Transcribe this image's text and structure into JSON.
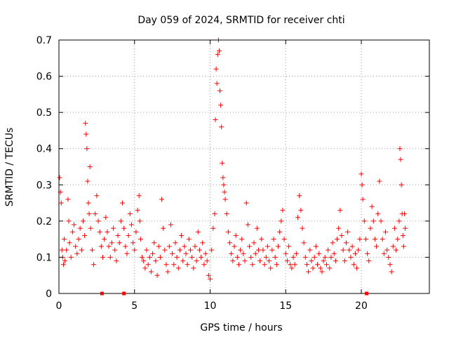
{
  "chart_data": {
    "type": "scatter",
    "title": "Day 059 of 2024, SRMTID for receiver chti",
    "xlabel": "GPS time / hours",
    "ylabel": "SRMTID / TECUs",
    "xlim": [
      0,
      24.5
    ],
    "ylim": [
      0,
      0.7
    ],
    "x_ticks": [
      0,
      5,
      10,
      15,
      20
    ],
    "x_tick_labels": [
      "0",
      "5",
      "10",
      "15",
      "20"
    ],
    "y_ticks": [
      0,
      0.1,
      0.2,
      0.3,
      0.4,
      0.5,
      0.6,
      0.7
    ],
    "y_tick_labels": [
      "0",
      "0.1",
      "0.2",
      "0.3",
      "0.4",
      "0.5",
      "0.6",
      "0.7"
    ],
    "grid": true,
    "marker": "+",
    "color": "#ff0000",
    "series": [
      {
        "name": "SRMTID",
        "points": [
          [
            0.05,
            0.32
          ],
          [
            0.1,
            0.28
          ],
          [
            0.15,
            0.25
          ],
          [
            0.2,
            0.12
          ],
          [
            0.25,
            0.1
          ],
          [
            0.3,
            0.08
          ],
          [
            0.35,
            0.15
          ],
          [
            0.4,
            0.09
          ],
          [
            0.5,
            0.12
          ],
          [
            0.6,
            0.26
          ],
          [
            0.65,
            0.2
          ],
          [
            0.7,
            0.14
          ],
          [
            0.8,
            0.1
          ],
          [
            0.9,
            0.17
          ],
          [
            1.0,
            0.19
          ],
          [
            1.1,
            0.13
          ],
          [
            1.2,
            0.11
          ],
          [
            1.3,
            0.15
          ],
          [
            1.4,
            0.18
          ],
          [
            1.5,
            0.12
          ],
          [
            1.6,
            0.2
          ],
          [
            1.7,
            0.16
          ],
          [
            1.75,
            0.47
          ],
          [
            1.8,
            0.44
          ],
          [
            1.85,
            0.4
          ],
          [
            1.9,
            0.31
          ],
          [
            1.95,
            0.25
          ],
          [
            2.0,
            0.22
          ],
          [
            2.05,
            0.35
          ],
          [
            2.1,
            0.18
          ],
          [
            2.2,
            0.12
          ],
          [
            2.3,
            0.08
          ],
          [
            2.4,
            0.22
          ],
          [
            2.5,
            0.27
          ],
          [
            2.6,
            0.2
          ],
          [
            2.7,
            0.17
          ],
          [
            2.8,
            0.13
          ],
          [
            2.9,
            0.1
          ],
          [
            3.0,
            0.15
          ],
          [
            3.1,
            0.21
          ],
          [
            3.2,
            0.17
          ],
          [
            3.3,
            0.13
          ],
          [
            3.4,
            0.1
          ],
          [
            3.5,
            0.14
          ],
          [
            3.6,
            0.18
          ],
          [
            3.7,
            0.12
          ],
          [
            3.8,
            0.09
          ],
          [
            3.9,
            0.16
          ],
          [
            4.0,
            0.14
          ],
          [
            4.1,
            0.2
          ],
          [
            4.2,
            0.25
          ],
          [
            4.3,
            0.18
          ],
          [
            4.4,
            0.13
          ],
          [
            4.5,
            0.11
          ],
          [
            4.6,
            0.16
          ],
          [
            4.7,
            0.22
          ],
          [
            4.8,
            0.19
          ],
          [
            4.9,
            0.14
          ],
          [
            5.0,
            0.12
          ],
          [
            5.1,
            0.17
          ],
          [
            5.2,
            0.23
          ],
          [
            5.3,
            0.27
          ],
          [
            5.35,
            0.2
          ],
          [
            5.4,
            0.15
          ],
          [
            5.5,
            0.1
          ],
          [
            5.6,
            0.09
          ],
          [
            5.7,
            0.07
          ],
          [
            5.8,
            0.12
          ],
          [
            5.9,
            0.08
          ],
          [
            6.0,
            0.1
          ],
          [
            6.1,
            0.06
          ],
          [
            6.2,
            0.11
          ],
          [
            6.3,
            0.14
          ],
          [
            6.4,
            0.09
          ],
          [
            6.5,
            0.05
          ],
          [
            6.6,
            0.13
          ],
          [
            6.7,
            0.1
          ],
          [
            6.8,
            0.26
          ],
          [
            6.9,
            0.18
          ],
          [
            7.0,
            0.12
          ],
          [
            7.1,
            0.08
          ],
          [
            7.2,
            0.06
          ],
          [
            7.3,
            0.13
          ],
          [
            7.4,
            0.19
          ],
          [
            7.5,
            0.11
          ],
          [
            7.6,
            0.08
          ],
          [
            7.7,
            0.14
          ],
          [
            7.8,
            0.1
          ],
          [
            7.9,
            0.07
          ],
          [
            8.0,
            0.12
          ],
          [
            8.1,
            0.16
          ],
          [
            8.2,
            0.09
          ],
          [
            8.3,
            0.13
          ],
          [
            8.4,
            0.11
          ],
          [
            8.5,
            0.08
          ],
          [
            8.6,
            0.15
          ],
          [
            8.7,
            0.12
          ],
          [
            8.8,
            0.1
          ],
          [
            8.9,
            0.07
          ],
          [
            9.0,
            0.13
          ],
          [
            9.1,
            0.09
          ],
          [
            9.2,
            0.17
          ],
          [
            9.3,
            0.12
          ],
          [
            9.4,
            0.1
          ],
          [
            9.5,
            0.14
          ],
          [
            9.6,
            0.08
          ],
          [
            9.7,
            0.11
          ],
          [
            9.8,
            0.09
          ],
          [
            9.9,
            0.05
          ],
          [
            10.0,
            0.04
          ],
          [
            10.1,
            0.12
          ],
          [
            10.2,
            0.18
          ],
          [
            10.3,
            0.22
          ],
          [
            10.35,
            0.48
          ],
          [
            10.4,
            0.62
          ],
          [
            10.45,
            0.58
          ],
          [
            10.5,
            0.66
          ],
          [
            10.55,
            0.7
          ],
          [
            10.6,
            0.67
          ],
          [
            10.65,
            0.56
          ],
          [
            10.7,
            0.52
          ],
          [
            10.75,
            0.46
          ],
          [
            10.8,
            0.36
          ],
          [
            10.85,
            0.32
          ],
          [
            10.9,
            0.3
          ],
          [
            10.95,
            0.28
          ],
          [
            11.0,
            0.26
          ],
          [
            11.1,
            0.22
          ],
          [
            11.2,
            0.17
          ],
          [
            11.3,
            0.14
          ],
          [
            11.4,
            0.11
          ],
          [
            11.5,
            0.09
          ],
          [
            11.6,
            0.13
          ],
          [
            11.7,
            0.16
          ],
          [
            11.8,
            0.1
          ],
          [
            11.9,
            0.08
          ],
          [
            12.0,
            0.12
          ],
          [
            12.1,
            0.15
          ],
          [
            12.2,
            0.11
          ],
          [
            12.3,
            0.09
          ],
          [
            12.4,
            0.25
          ],
          [
            12.5,
            0.19
          ],
          [
            12.6,
            0.13
          ],
          [
            12.7,
            0.1
          ],
          [
            12.8,
            0.08
          ],
          [
            12.9,
            0.14
          ],
          [
            13.0,
            0.11
          ],
          [
            13.1,
            0.18
          ],
          [
            13.2,
            0.12
          ],
          [
            13.3,
            0.09
          ],
          [
            13.4,
            0.15
          ],
          [
            13.5,
            0.12
          ],
          [
            13.6,
            0.08
          ],
          [
            13.7,
            0.1
          ],
          [
            13.8,
            0.13
          ],
          [
            13.9,
            0.09
          ],
          [
            14.0,
            0.07
          ],
          [
            14.1,
            0.12
          ],
          [
            14.2,
            0.15
          ],
          [
            14.3,
            0.1
          ],
          [
            14.4,
            0.08
          ],
          [
            14.5,
            0.13
          ],
          [
            14.6,
            0.17
          ],
          [
            14.7,
            0.2
          ],
          [
            14.8,
            0.23
          ],
          [
            14.9,
            0.15
          ],
          [
            15.0,
            0.11
          ],
          [
            15.1,
            0.09
          ],
          [
            15.2,
            0.13
          ],
          [
            15.3,
            0.08
          ],
          [
            15.4,
            0.07
          ],
          [
            15.5,
            0.1
          ],
          [
            15.6,
            0.08
          ],
          [
            15.7,
            0.11
          ],
          [
            15.8,
            0.21
          ],
          [
            15.9,
            0.27
          ],
          [
            16.0,
            0.23
          ],
          [
            16.1,
            0.18
          ],
          [
            16.2,
            0.14
          ],
          [
            16.3,
            0.1
          ],
          [
            16.4,
            0.08
          ],
          [
            16.5,
            0.06
          ],
          [
            16.6,
            0.12
          ],
          [
            16.7,
            0.09
          ],
          [
            16.8,
            0.07
          ],
          [
            16.9,
            0.1
          ],
          [
            17.0,
            0.13
          ],
          [
            17.1,
            0.08
          ],
          [
            17.2,
            0.11
          ],
          [
            17.3,
            0.07
          ],
          [
            17.4,
            0.06
          ],
          [
            17.5,
            0.09
          ],
          [
            17.6,
            0.1
          ],
          [
            17.7,
            0.08
          ],
          [
            17.8,
            0.12
          ],
          [
            17.9,
            0.07
          ],
          [
            18.0,
            0.1
          ],
          [
            18.1,
            0.14
          ],
          [
            18.2,
            0.11
          ],
          [
            18.3,
            0.09
          ],
          [
            18.4,
            0.15
          ],
          [
            18.5,
            0.18
          ],
          [
            18.6,
            0.23
          ],
          [
            18.7,
            0.16
          ],
          [
            18.8,
            0.12
          ],
          [
            18.9,
            0.09
          ],
          [
            19.0,
            0.14
          ],
          [
            19.1,
            0.17
          ],
          [
            19.2,
            0.12
          ],
          [
            19.3,
            0.1
          ],
          [
            19.4,
            0.13
          ],
          [
            19.5,
            0.08
          ],
          [
            19.6,
            0.11
          ],
          [
            19.7,
            0.07
          ],
          [
            19.8,
            0.12
          ],
          [
            19.9,
            0.15
          ],
          [
            20.0,
            0.33
          ],
          [
            20.05,
            0.3
          ],
          [
            20.1,
            0.26
          ],
          [
            20.2,
            0.2
          ],
          [
            20.3,
            0.15
          ],
          [
            20.4,
            0.11
          ],
          [
            20.5,
            0.09
          ],
          [
            20.6,
            0.18
          ],
          [
            20.7,
            0.24
          ],
          [
            20.8,
            0.2
          ],
          [
            20.9,
            0.15
          ],
          [
            21.0,
            0.13
          ],
          [
            21.1,
            0.22
          ],
          [
            21.2,
            0.31
          ],
          [
            21.3,
            0.2
          ],
          [
            21.4,
            0.15
          ],
          [
            21.5,
            0.11
          ],
          [
            21.6,
            0.17
          ],
          [
            21.7,
            0.12
          ],
          [
            21.8,
            0.1
          ],
          [
            21.9,
            0.08
          ],
          [
            22.0,
            0.06
          ],
          [
            22.1,
            0.13
          ],
          [
            22.2,
            0.18
          ],
          [
            22.3,
            0.12
          ],
          [
            22.4,
            0.15
          ],
          [
            22.5,
            0.2
          ],
          [
            22.55,
            0.4
          ],
          [
            22.6,
            0.37
          ],
          [
            22.65,
            0.3
          ],
          [
            22.7,
            0.22
          ],
          [
            22.75,
            0.16
          ],
          [
            22.8,
            0.13
          ],
          [
            22.85,
            0.22
          ],
          [
            22.9,
            0.18
          ]
        ]
      }
    ],
    "axis_markers": [
      2.85,
      4.3,
      20.35
    ]
  }
}
